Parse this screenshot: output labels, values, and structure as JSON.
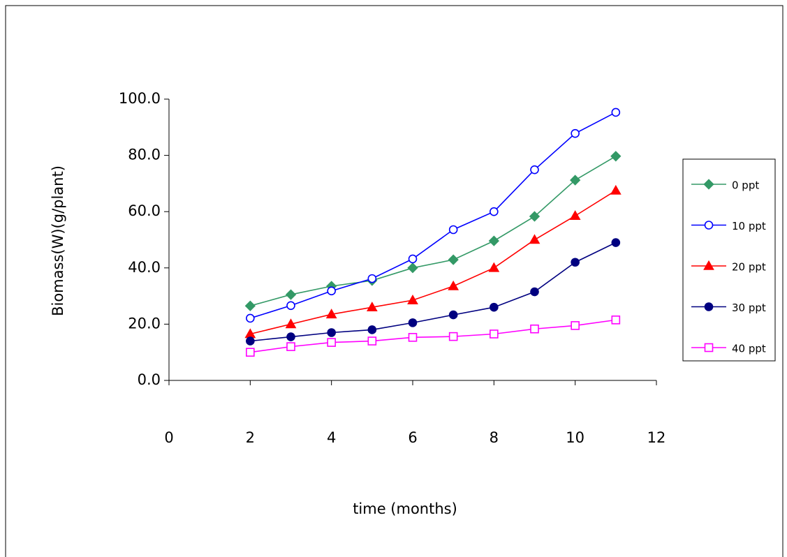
{
  "chart_data": {
    "type": "line",
    "xlabel": "time (months)",
    "ylabel": "Biomass(W)(g/plant)",
    "x": [
      2,
      3,
      4,
      5,
      6,
      7,
      8,
      9,
      10,
      11
    ],
    "series": [
      {
        "name": "0 ppt",
        "color": "#339966",
        "marker": "diamond",
        "values": [
          26.5,
          30.5,
          33.5,
          35.5,
          40.0,
          42.9,
          49.6,
          58.3,
          71.2,
          79.7
        ]
      },
      {
        "name": "10 ppt",
        "color": "#0000ff",
        "marker": "open-circle",
        "values": [
          22.1,
          26.6,
          31.8,
          36.2,
          43.2,
          53.6,
          60.0,
          74.9,
          87.8,
          95.3
        ]
      },
      {
        "name": "20 ppt",
        "color": "#ff0000",
        "marker": "triangle",
        "values": [
          16.5,
          20.0,
          23.5,
          26.0,
          28.5,
          33.5,
          40.0,
          50.0,
          58.5,
          67.5
        ]
      },
      {
        "name": "30 ppt",
        "color": "#000080",
        "marker": "circle",
        "values": [
          14.0,
          15.5,
          17.0,
          18.0,
          20.5,
          23.3,
          26.0,
          31.5,
          42.0,
          49.0
        ]
      },
      {
        "name": "40 ppt",
        "color": "#ff00ff",
        "marker": "open-square",
        "values": [
          10.0,
          12.0,
          13.5,
          14.0,
          15.3,
          15.6,
          16.5,
          18.3,
          19.5,
          21.5
        ]
      }
    ],
    "xlim": [
      0,
      12
    ],
    "xticks": [
      0,
      2,
      4,
      6,
      8,
      10,
      12
    ],
    "ylim": [
      0,
      100
    ],
    "yticks": [
      {
        "value": 0,
        "label": "0.0"
      },
      {
        "value": 20,
        "label": "20.0"
      },
      {
        "value": 40,
        "label": "40.0"
      },
      {
        "value": 60,
        "label": "60.0"
      },
      {
        "value": 80,
        "label": "80.0"
      },
      {
        "value": 100,
        "label": "100.0"
      }
    ],
    "grid": false,
    "legend": "right"
  }
}
